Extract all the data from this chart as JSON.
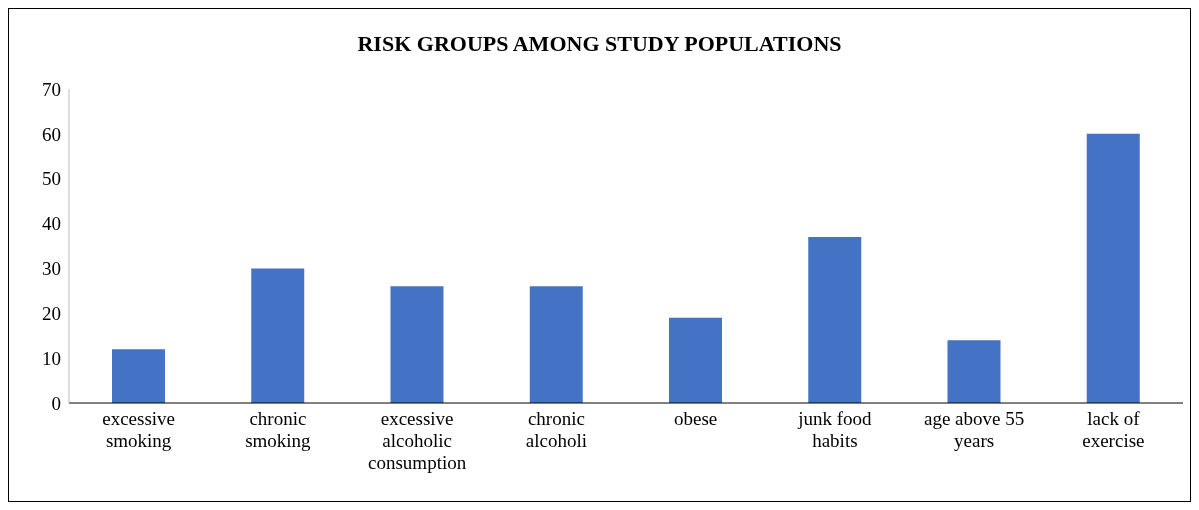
{
  "chart_data": {
    "type": "bar",
    "title": "RISK GROUPS AMONG STUDY POPULATIONS",
    "categories": [
      "excessive smoking",
      "chronic smoking",
      "excessive alcoholic consumption",
      "chronic alcoholi",
      "obese",
      "junk food habits",
      "age above 55 years",
      "lack of exercise"
    ],
    "values": [
      12,
      30,
      26,
      26,
      19,
      37,
      14,
      60
    ],
    "color": "#4472c4",
    "ylim": [
      0,
      70
    ],
    "yticks": [
      0,
      10,
      20,
      30,
      40,
      50,
      60,
      70
    ],
    "grid": false,
    "legend": false
  }
}
